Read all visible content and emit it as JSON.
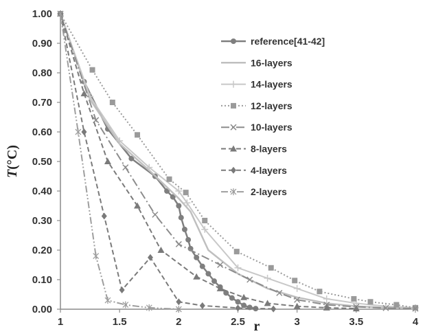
{
  "chart_data": {
    "type": "line",
    "title": "",
    "xlabel": "r",
    "ylabel_italic": "T",
    "ylabel_rest": "(°C)",
    "xlim": [
      1,
      4
    ],
    "ylim": [
      0,
      1
    ],
    "xticks": [
      1,
      1.5,
      2,
      2.5,
      3,
      3.5,
      4
    ],
    "xtick_labels": [
      "1",
      "1.5",
      "2",
      "2.5",
      "3",
      "3.5",
      "4"
    ],
    "yticks": [
      0,
      0.1,
      0.2,
      0.3,
      0.4,
      0.5,
      0.6,
      0.7,
      0.8,
      0.9,
      1.0
    ],
    "ytick_labels": [
      "0.00",
      "0.10",
      "0.20",
      "0.30",
      "0.40",
      "0.50",
      "0.60",
      "0.70",
      "0.80",
      "0.90",
      "1.00"
    ],
    "grid": false,
    "legend_position": "top-right",
    "series": [
      {
        "name": "reference[41-42]",
        "color": "#7f7f7f",
        "width": 2.5,
        "dash": "",
        "marker": "circle",
        "x": [
          1,
          1.2,
          1.4,
          1.6,
          1.8,
          1.9,
          1.95,
          2.0,
          2.02,
          2.05,
          2.08,
          2.1,
          2.15,
          2.2,
          2.25,
          2.3,
          2.35,
          2.4,
          2.45,
          2.5,
          2.55,
          2.6,
          2.65
        ],
        "y": [
          1.0,
          0.77,
          0.61,
          0.51,
          0.45,
          0.4,
          0.38,
          0.35,
          0.31,
          0.27,
          0.235,
          0.205,
          0.175,
          0.145,
          0.12,
          0.095,
          0.075,
          0.055,
          0.038,
          0.025,
          0.013,
          0.006,
          0.002
        ]
      },
      {
        "name": "16-layers",
        "color": "#bfbfbf",
        "width": 2.5,
        "dash": "",
        "marker": "none",
        "x": [
          1,
          1.25,
          1.5,
          1.75,
          2.0,
          2.1,
          2.25,
          2.5,
          2.75,
          3.0,
          3.25,
          3.5,
          3.75,
          4.0
        ],
        "y": [
          1.0,
          0.71,
          0.56,
          0.47,
          0.375,
          0.33,
          0.2,
          0.12,
          0.07,
          0.04,
          0.02,
          0.01,
          0.005,
          0.002
        ]
      },
      {
        "name": "14-layers",
        "color": "#c8c8c8",
        "width": 2,
        "dash": "",
        "marker": "plus",
        "x": [
          1,
          1.25,
          1.5,
          1.75,
          2.0,
          2.07,
          2.22,
          2.5,
          2.75,
          3.0,
          3.25,
          3.5,
          3.75,
          4.0
        ],
        "y": [
          1.0,
          0.72,
          0.57,
          0.48,
          0.4,
          0.36,
          0.27,
          0.14,
          0.105,
          0.07,
          0.035,
          0.02,
          0.01,
          0.005
        ]
      },
      {
        "name": "12-layers",
        "color": "#9a9a9a",
        "width": 2,
        "dash": "2,3",
        "marker": "square",
        "x": [
          1,
          1.27,
          1.44,
          1.65,
          1.92,
          2.06,
          2.22,
          2.49,
          2.78,
          2.98,
          3.19,
          3.48,
          3.62,
          3.84,
          4.0
        ],
        "y": [
          1.0,
          0.81,
          0.7,
          0.59,
          0.44,
          0.395,
          0.3,
          0.195,
          0.14,
          0.097,
          0.06,
          0.035,
          0.025,
          0.015,
          0.005
        ]
      },
      {
        "name": "10-layers",
        "color": "#8c8c8c",
        "width": 2,
        "dash": "12,4,2,4",
        "marker": "x",
        "x": [
          1,
          1.3,
          1.55,
          1.8,
          2.0,
          2.35,
          2.6,
          2.85,
          3.0,
          3.25,
          3.5,
          3.75,
          4.0
        ],
        "y": [
          1.0,
          0.64,
          0.48,
          0.32,
          0.22,
          0.15,
          0.1,
          0.055,
          0.032,
          0.015,
          0.008,
          0.004,
          0.002
        ]
      },
      {
        "name": "8-layers",
        "color": "#7a7a7a",
        "width": 2,
        "dash": "7,4",
        "marker": "triangle",
        "x": [
          1,
          1.2,
          1.4,
          1.65,
          1.85,
          2.15,
          2.35,
          2.55,
          2.75,
          3.0,
          3.25,
          3.5
        ],
        "y": [
          1.0,
          0.73,
          0.5,
          0.35,
          0.2,
          0.11,
          0.07,
          0.04,
          0.02,
          0.01,
          0.005,
          0.002
        ]
      },
      {
        "name": "4-layers",
        "color": "#7a7a7a",
        "width": 2,
        "dash": "7,4",
        "marker": "diamond",
        "x": [
          1,
          1.2,
          1.37,
          1.52,
          1.76,
          2.0,
          2.2,
          2.5,
          2.8
        ],
        "y": [
          1.0,
          0.6,
          0.315,
          0.065,
          0.175,
          0.025,
          0.012,
          0.004,
          0.001
        ]
      },
      {
        "name": "2-layers",
        "color": "#9e9e9e",
        "width": 2,
        "dash": "10,3,2,3,2,3",
        "marker": "asterisk",
        "x": [
          1,
          1.15,
          1.3,
          1.4,
          1.55,
          1.75,
          2.0
        ],
        "y": [
          1.0,
          0.6,
          0.18,
          0.03,
          0.015,
          0.005,
          0.0
        ]
      }
    ]
  }
}
